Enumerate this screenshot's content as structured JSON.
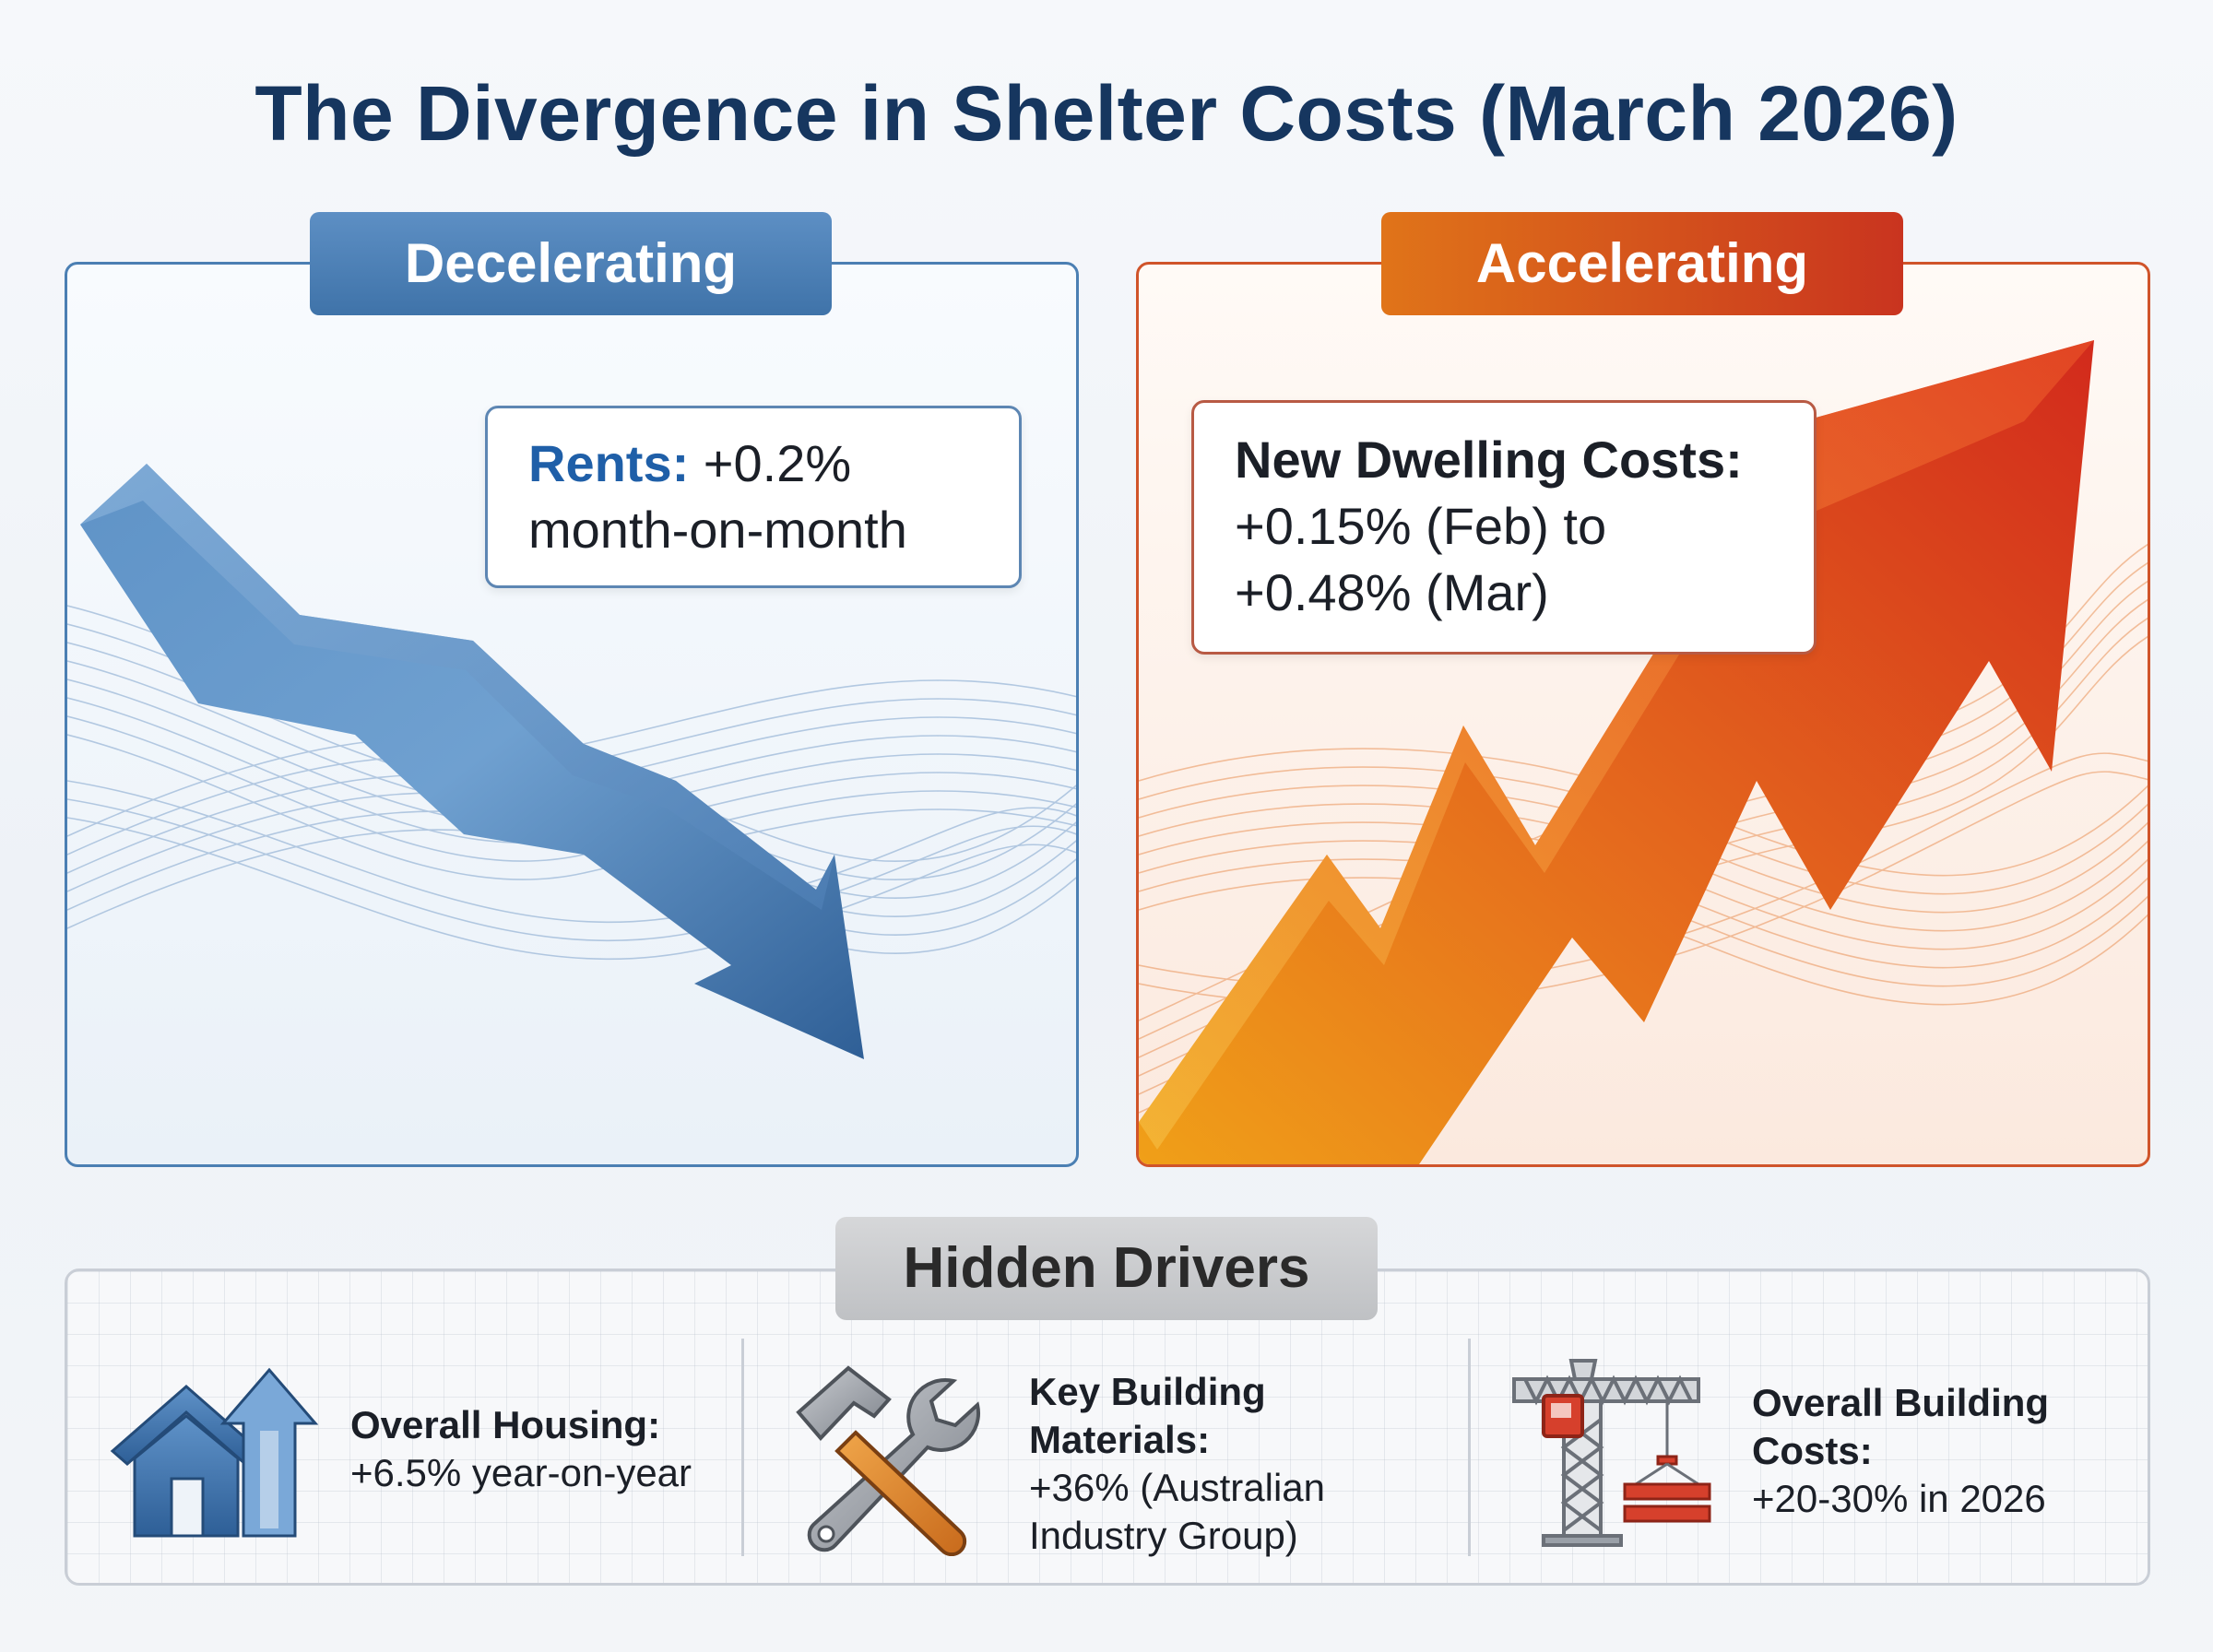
{
  "title": "The Divergence in Shelter Costs (March 2026)",
  "panels": {
    "left": {
      "tag": "Decelerating",
      "callout": {
        "keyword": "Rents:",
        "value": "+0.2%",
        "detail": "month-on-month"
      },
      "accent": "#3f73a9"
    },
    "right": {
      "tag": "Accelerating",
      "callout": {
        "keyword": "New Dwelling Costs:",
        "line2": "+0.15% (Feb) to",
        "line3": "+0.48% (Mar)"
      },
      "accent": "#c9341f"
    }
  },
  "drivers": {
    "heading": "Hidden Drivers",
    "items": [
      {
        "icon": "house-up-arrow-icon",
        "title": "Overall Housing:",
        "lines": [
          "+6.5% year-on-year"
        ]
      },
      {
        "icon": "hammer-wrench-icon",
        "title_lines": [
          "Key Building",
          "Materials:"
        ],
        "lines": [
          "+36% (Australian",
          "Industry Group)"
        ]
      },
      {
        "icon": "crane-icon",
        "title_lines": [
          "Overall Building",
          "Costs:"
        ],
        "lines": [
          "+20-30% in 2026"
        ]
      }
    ]
  }
}
